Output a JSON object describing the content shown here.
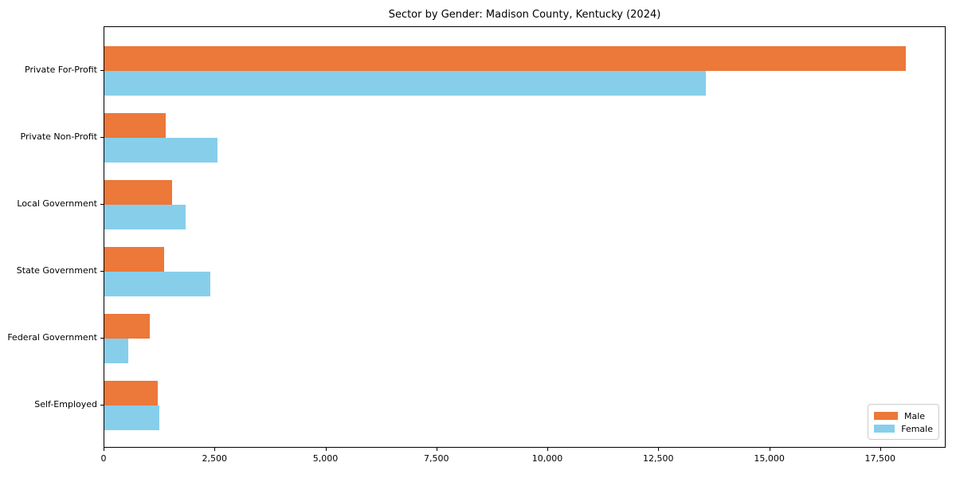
{
  "chart_data": {
    "type": "bar",
    "orientation": "horizontal",
    "title": "Sector by Gender: Madison County, Kentucky (2024)",
    "categories": [
      "Private For-Profit",
      "Private Non-Profit",
      "Local Government",
      "State Government",
      "Federal Government",
      "Self-Employed"
    ],
    "series": [
      {
        "name": "Male",
        "color": "#ec7839",
        "values": [
          18050,
          1390,
          1530,
          1350,
          1030,
          1200
        ]
      },
      {
        "name": "Female",
        "color": "#87ceeb",
        "values": [
          13550,
          2550,
          1830,
          2390,
          540,
          1240
        ]
      }
    ],
    "xlabel": "",
    "ylabel": "",
    "xlim": [
      0,
      18975
    ],
    "xticks": [
      0,
      2500,
      5000,
      7500,
      10000,
      12500,
      15000,
      17500
    ],
    "xtick_labels": [
      "0",
      "2,500",
      "5,000",
      "7,500",
      "10,000",
      "12,500",
      "15,000",
      "17,500"
    ],
    "grid": false,
    "legend": {
      "position": "lower right",
      "entries": [
        "Male",
        "Female"
      ]
    }
  }
}
